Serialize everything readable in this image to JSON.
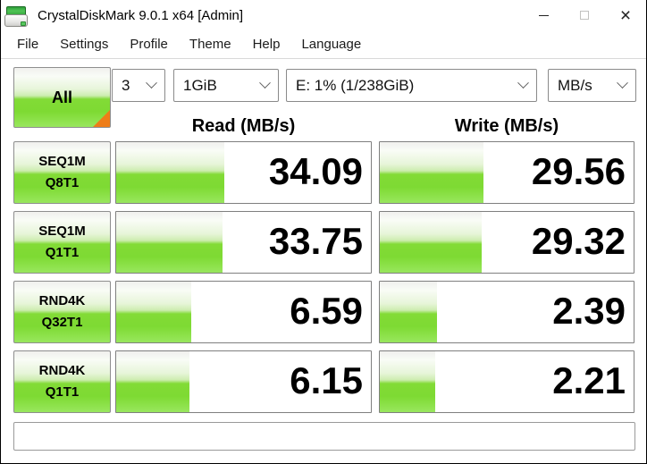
{
  "window": {
    "title": "CrystalDiskMark 9.0.1 x64 [Admin]",
    "close_glyph": "×"
  },
  "menu": {
    "items": [
      "File",
      "Settings",
      "Profile",
      "Theme",
      "Help",
      "Language"
    ]
  },
  "toolbar": {
    "all_button_label": "All",
    "test_count": "3",
    "test_size": "1GiB",
    "target_drive": "E: 1% (1/238GiB)",
    "unit": "MB/s"
  },
  "columns": {
    "read_header": "Read (MB/s)",
    "write_header": "Write (MB/s)"
  },
  "rows": [
    {
      "label_line1": "SEQ1M",
      "label_line2": "Q8T1",
      "read_value": "34.09",
      "write_value": "29.56",
      "read_bar_percent": 42.5,
      "write_bar_percent": 41.0
    },
    {
      "label_line1": "SEQ1M",
      "label_line2": "Q1T1",
      "read_value": "33.75",
      "write_value": "29.32",
      "read_bar_percent": 41.8,
      "write_bar_percent": 40.2
    },
    {
      "label_line1": "RND4K",
      "label_line2": "Q32T1",
      "read_value": "6.59",
      "write_value": "2.39",
      "read_bar_percent": 29.6,
      "write_bar_percent": 22.4
    },
    {
      "label_line1": "RND4K",
      "label_line2": "Q1T1",
      "read_value": "6.15",
      "write_value": "2.21",
      "read_bar_percent": 28.9,
      "write_bar_percent": 22.0
    }
  ],
  "status_text": "",
  "colors": {
    "accent_green": "#7eda33",
    "corner_orange": "#ee7d18",
    "text": "#000000",
    "border_gray": "#8a8a8a"
  }
}
